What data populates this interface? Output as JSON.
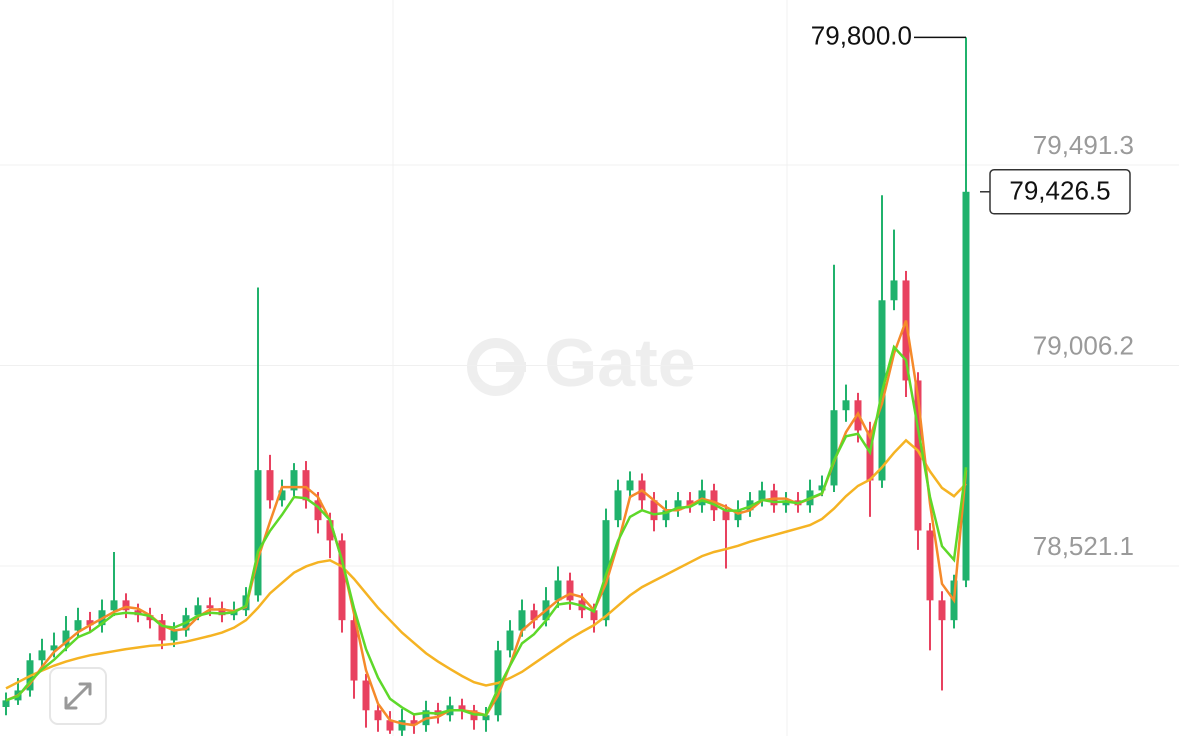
{
  "chart_data": {
    "type": "candlestick",
    "watermark": "Gate",
    "ylim": [
      78109.8,
      79890.5
    ],
    "yticks": [
      {
        "value": 78521.1,
        "label": "78,521.1"
      },
      {
        "value": 79006.2,
        "label": "79,006.2"
      },
      {
        "value": 79491.3,
        "label": "79,491.3"
      }
    ],
    "grid": true,
    "up_color": "#20b26c",
    "down_color": "#e8415f",
    "high_annotation": {
      "value": 79800,
      "label": "79,800.0"
    },
    "last_price": {
      "value": 79426.5,
      "label": "79,426.5"
    },
    "candles": [
      [
        78180,
        78215,
        78160,
        78196
      ],
      [
        78196,
        78250,
        78185,
        78220
      ],
      [
        78220,
        78310,
        78205,
        78293
      ],
      [
        78293,
        78345,
        78275,
        78317
      ],
      [
        78317,
        78360,
        78300,
        78329
      ],
      [
        78329,
        78400,
        78315,
        78365
      ],
      [
        78365,
        78420,
        78350,
        78390
      ],
      [
        78390,
        78410,
        78360,
        78378
      ],
      [
        78378,
        78440,
        78360,
        78414
      ],
      [
        78414,
        78555,
        78400,
        78438
      ],
      [
        78438,
        78455,
        78395,
        78414
      ],
      [
        78414,
        78430,
        78385,
        78402
      ],
      [
        78402,
        78420,
        78370,
        78390
      ],
      [
        78390,
        78405,
        78320,
        78341
      ],
      [
        78341,
        78385,
        78325,
        78365
      ],
      [
        78365,
        78420,
        78350,
        78402
      ],
      [
        78402,
        78445,
        78390,
        78426
      ],
      [
        78426,
        78445,
        78400,
        78419
      ],
      [
        78419,
        78435,
        78385,
        78402
      ],
      [
        78402,
        78435,
        78390,
        78414
      ],
      [
        78414,
        78470,
        78400,
        78450
      ],
      [
        78450,
        79195,
        78435,
        78753
      ],
      [
        78753,
        78790,
        78660,
        78680
      ],
      [
        78680,
        78730,
        78665,
        78704
      ],
      [
        78704,
        78770,
        78690,
        78753
      ],
      [
        78753,
        78775,
        78660,
        78680
      ],
      [
        78680,
        78700,
        78600,
        78632
      ],
      [
        78632,
        78650,
        78540,
        78583
      ],
      [
        78583,
        78600,
        78360,
        78390
      ],
      [
        78390,
        78405,
        78200,
        78244
      ],
      [
        78244,
        78260,
        78130,
        78172
      ],
      [
        78172,
        78185,
        78120,
        78148
      ],
      [
        78148,
        78170,
        78115,
        78123
      ],
      [
        78123,
        78175,
        78110,
        78148
      ],
      [
        78148,
        78165,
        78115,
        78136
      ],
      [
        78136,
        78195,
        78120,
        78172
      ],
      [
        78172,
        78190,
        78140,
        78160
      ],
      [
        78160,
        78205,
        78145,
        78184
      ],
      [
        78184,
        78200,
        78150,
        78172
      ],
      [
        78172,
        78185,
        78125,
        78148
      ],
      [
        78148,
        78180,
        78120,
        78160
      ],
      [
        78160,
        78340,
        78145,
        78317
      ],
      [
        78317,
        78390,
        78300,
        78365
      ],
      [
        78365,
        78440,
        78350,
        78414
      ],
      [
        78414,
        78430,
        78370,
        78390
      ],
      [
        78390,
        78470,
        78375,
        78438
      ],
      [
        78438,
        78520,
        78420,
        78486
      ],
      [
        78486,
        78505,
        78415,
        78438
      ],
      [
        78438,
        78455,
        78395,
        78414
      ],
      [
        78414,
        78430,
        78360,
        78390
      ],
      [
        78390,
        78660,
        78375,
        78632
      ],
      [
        78632,
        78730,
        78615,
        78704
      ],
      [
        78704,
        78750,
        78690,
        78728
      ],
      [
        78728,
        78745,
        78655,
        78680
      ],
      [
        78680,
        78700,
        78605,
        78632
      ],
      [
        78632,
        78680,
        78615,
        78656
      ],
      [
        78656,
        78700,
        78640,
        78680
      ],
      [
        78680,
        78700,
        78650,
        78668
      ],
      [
        78668,
        78730,
        78650,
        78704
      ],
      [
        78704,
        78720,
        78630,
        78656
      ],
      [
        78656,
        78670,
        78515,
        78632
      ],
      [
        78632,
        78680,
        78615,
        78656
      ],
      [
        78656,
        78700,
        78640,
        78680
      ],
      [
        78680,
        78725,
        78665,
        78704
      ],
      [
        78704,
        78720,
        78650,
        78668
      ],
      [
        78668,
        78700,
        78650,
        78680
      ],
      [
        78680,
        78700,
        78650,
        78668
      ],
      [
        78668,
        78730,
        78650,
        78704
      ],
      [
        78704,
        78740,
        78690,
        78716
      ],
      [
        78716,
        79250,
        78700,
        78898
      ],
      [
        78898,
        78960,
        78870,
        78922
      ],
      [
        78922,
        78940,
        78820,
        78849
      ],
      [
        78849,
        78870,
        78640,
        78728
      ],
      [
        78728,
        79418,
        78710,
        79164
      ],
      [
        79164,
        79335,
        79140,
        79212
      ],
      [
        79212,
        79235,
        78930,
        78970
      ],
      [
        78970,
        78990,
        78560,
        78607
      ],
      [
        78607,
        78625,
        78317,
        78438
      ],
      [
        78438,
        78460,
        78220,
        78390
      ],
      [
        78390,
        78500,
        78370,
        78486
      ],
      [
        78486,
        79800,
        78470,
        79426.5
      ]
    ],
    "series": [
      {
        "color": "#f5b323",
        "values": [
          78225,
          78240,
          78255,
          78268,
          78280,
          78290,
          78298,
          78305,
          78310,
          78315,
          78320,
          78324,
          78328,
          78330,
          78333,
          78338,
          78345,
          78352,
          78360,
          78372,
          78390,
          78420,
          78455,
          78480,
          78505,
          78520,
          78530,
          78535,
          78520,
          78490,
          78455,
          78420,
          78390,
          78360,
          78335,
          78310,
          78290,
          78272,
          78255,
          78240,
          78232,
          78238,
          78250,
          78265,
          78285,
          78305,
          78325,
          78345,
          78362,
          78378,
          78400,
          78425,
          78450,
          78470,
          78485,
          78500,
          78515,
          78530,
          78545,
          78555,
          78562,
          78570,
          78580,
          78588,
          78596,
          78604,
          78612,
          78620,
          78635,
          78660,
          78690,
          78715,
          78730,
          78760,
          78795,
          78825,
          78800,
          78750,
          78710,
          78690,
          78720
        ]
      },
      {
        "color": "#f58a2a",
        "values": [
          78196,
          78208,
          78236,
          78277,
          78313,
          78337,
          78361,
          78378,
          78394,
          78410,
          78422,
          78418,
          78402,
          78378,
          78365,
          78369,
          78398,
          78416,
          78416,
          78412,
          78422,
          78539,
          78628,
          78712,
          78712,
          78712,
          78688,
          78632,
          78535,
          78406,
          78269,
          78188,
          78148,
          78140,
          78136,
          78152,
          78156,
          78172,
          78172,
          78168,
          78160,
          78208,
          78281,
          78365,
          78390,
          78414,
          78438,
          78454,
          78446,
          78414,
          78479,
          78575,
          78688,
          78704,
          78680,
          78656,
          78656,
          78668,
          78684,
          78676,
          78664,
          78648,
          78656,
          78680,
          78684,
          78684,
          78672,
          78684,
          78696,
          78773,
          78845,
          78890,
          78833,
          78914,
          79035,
          79115,
          78930,
          78672,
          78478,
          78438,
          78753
        ]
      },
      {
        "color": "#5ed82a",
        "values": [
          78196,
          78206,
          78241,
          78271,
          78294,
          78322,
          78349,
          78361,
          78382,
          78404,
          78408,
          78406,
          78400,
          78376,
          78372,
          78384,
          78401,
          78408,
          78406,
          78409,
          78425,
          78556,
          78606,
          78645,
          78688,
          78685,
          78664,
          78632,
          78535,
          78419,
          78320,
          78251,
          78200,
          78179,
          78162,
          78166,
          78164,
          78172,
          78172,
          78162,
          78161,
          78224,
          78280,
          78334,
          78356,
          78389,
          78428,
          78432,
          78425,
          78411,
          78500,
          78582,
          78640,
          78656,
          78646,
          78650,
          78662,
          78664,
          78680,
          78670,
          78655,
          78655,
          78665,
          78681,
          78676,
          78677,
          78673,
          78685,
          78697,
          78777,
          78835,
          78841,
          78796,
          78943,
          79051,
          79019,
          78854,
          78688,
          78569,
          78536,
          78760
        ]
      }
    ]
  }
}
